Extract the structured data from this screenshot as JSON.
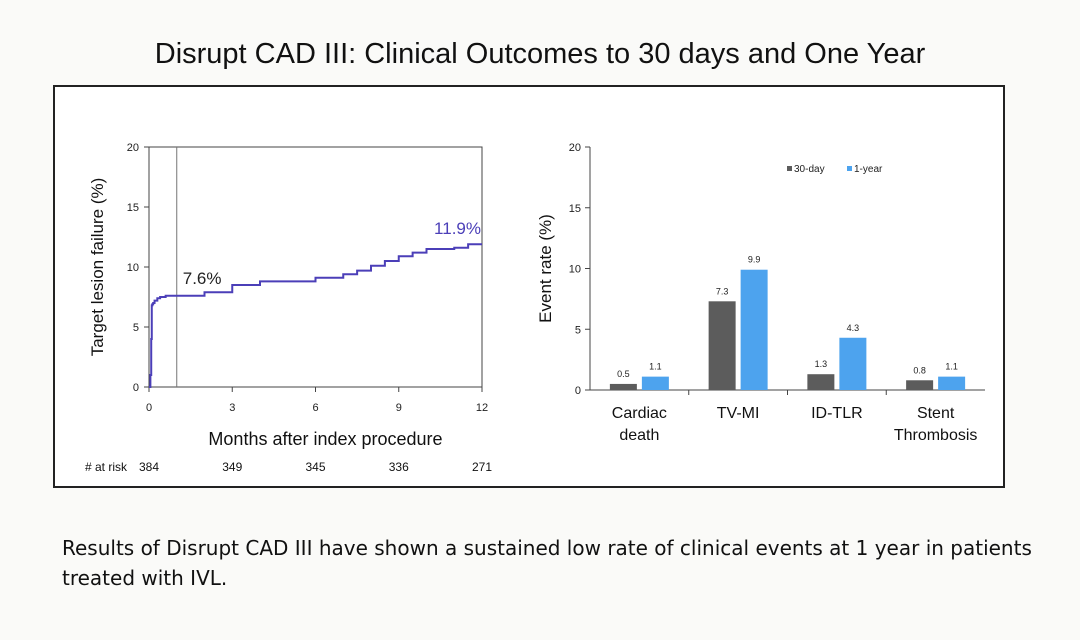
{
  "slide": {
    "title": "Disrupt CAD III: Clinical Outcomes to 30 days and One Year",
    "caption": "Results of Disrupt CAD III have shown a sustained low rate of clinical events at 1 year in patients treated with IVL."
  },
  "colors": {
    "line": "#4b3fb8",
    "bar_30day": "#5c5c5c",
    "bar_1year": "#4da3ee",
    "axis": "#333333"
  },
  "chart_data": [
    {
      "type": "line",
      "title": "",
      "xlabel": "Months after index procedure",
      "ylabel": "Target lesion failure (%)",
      "xlim": [
        0,
        12
      ],
      "ylim": [
        0,
        20
      ],
      "xticks": [
        0,
        3,
        6,
        9,
        12
      ],
      "yticks": [
        0,
        5,
        10,
        15,
        20
      ],
      "vline_x": 1,
      "series": [
        {
          "name": "TLF",
          "x": [
            0,
            0.05,
            0.08,
            0.1,
            0.12,
            0.15,
            0.2,
            0.3,
            0.4,
            0.5,
            0.6,
            0.8,
            1,
            2,
            3,
            4,
            5,
            6,
            7,
            7.5,
            8,
            8.5,
            9,
            9.5,
            10,
            11,
            11.5,
            12
          ],
          "y": [
            0,
            1,
            4,
            6.8,
            6.9,
            7.0,
            7.2,
            7.4,
            7.5,
            7.5,
            7.6,
            7.6,
            7.6,
            7.9,
            8.5,
            8.8,
            8.8,
            9.1,
            9.4,
            9.7,
            10.1,
            10.5,
            10.9,
            11.2,
            11.5,
            11.6,
            11.9,
            11.9
          ]
        }
      ],
      "annotations": [
        {
          "text": "7.6%",
          "x": 1,
          "y": 7.6
        },
        {
          "text": "11.9%",
          "x": 12,
          "y": 11.9
        }
      ],
      "at_risk": {
        "label": "# at risk",
        "x": [
          0,
          3,
          6,
          9,
          12
        ],
        "values": [
          "384",
          "349",
          "345",
          "336",
          "271"
        ]
      }
    },
    {
      "type": "bar",
      "title": "",
      "xlabel": "",
      "ylabel": "Event rate (%)",
      "ylim": [
        0,
        20
      ],
      "yticks": [
        0,
        5,
        10,
        15,
        20
      ],
      "legend_position": "top-center",
      "categories": [
        {
          "lines": [
            "Cardiac",
            "death"
          ]
        },
        {
          "lines": [
            "TV-MI"
          ]
        },
        {
          "lines": [
            "ID-TLR"
          ]
        },
        {
          "lines": [
            "Stent",
            "Thrombosis"
          ]
        }
      ],
      "series": [
        {
          "name": "30-day",
          "values": [
            0.5,
            7.3,
            1.3,
            0.8
          ],
          "labels": [
            "0.5",
            "7.3",
            "1.3",
            "0.8"
          ]
        },
        {
          "name": "1-year",
          "values": [
            1.1,
            9.9,
            4.3,
            1.1
          ],
          "labels": [
            "1.1",
            "9.9",
            "4.3",
            "1.1"
          ]
        }
      ]
    }
  ]
}
